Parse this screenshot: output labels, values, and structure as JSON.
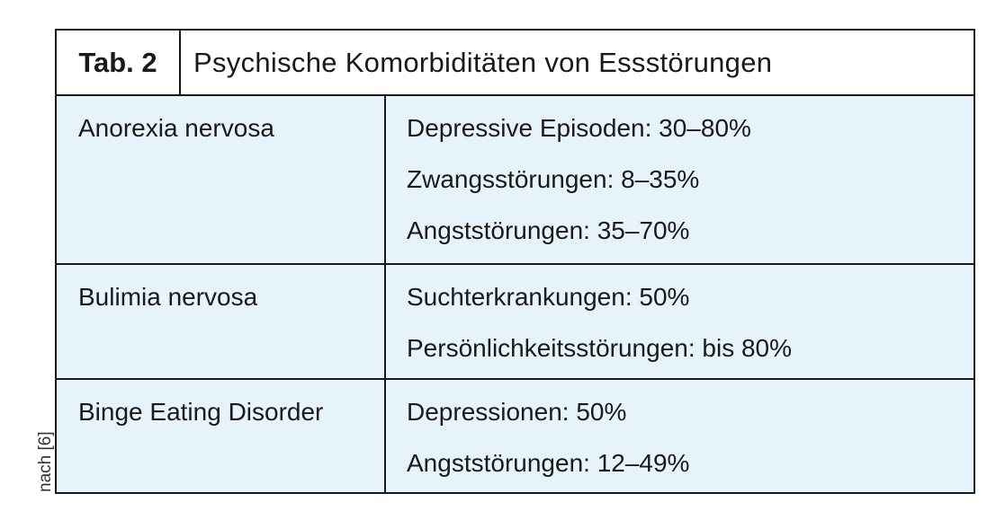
{
  "table": {
    "tag": "Tab. 2",
    "title": "Psychische Komorbiditäten von Essstörungen",
    "rows": [
      {
        "disorder": "Anorexia nervosa",
        "comorbidities": [
          "Depressive Episoden: 30–80%",
          "Zwangsstörungen: 8–35%",
          "Angststörungen: 35–70%"
        ]
      },
      {
        "disorder": "Bulimia nervosa",
        "comorbidities": [
          "Suchterkrankungen: 50%",
          "Persönlichkeitsstörungen: bis 80%"
        ]
      },
      {
        "disorder": "Binge Eating Disorder",
        "comorbidities": [
          "Depressionen: 50%",
          "Angststörungen: 12–49%"
        ]
      }
    ]
  },
  "source_note": "nach [6]",
  "colors": {
    "cell_background": "#e7f3fb",
    "border": "#1a1a1a",
    "title_background": "#ffffff"
  }
}
